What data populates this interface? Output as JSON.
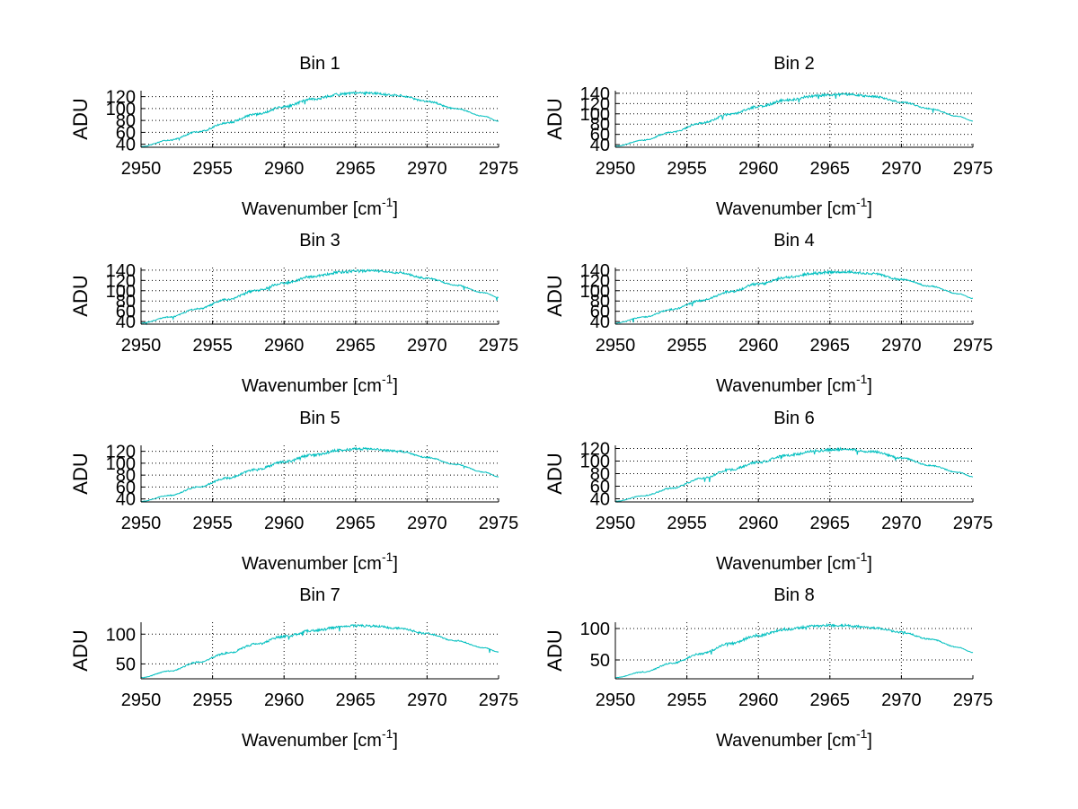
{
  "colors": {
    "background": "#ffffff",
    "line": "#00bfbf",
    "axis": "#000000",
    "grid": "#000000"
  },
  "chart_data": [
    {
      "type": "line",
      "title": "Bin 1",
      "xlabel": "Wavenumber [cm",
      "xlabel_sup": "-1",
      "xlabel_end": "]",
      "ylabel": "ADU",
      "xlim": [
        2950,
        2975
      ],
      "ylim": [
        35,
        130
      ],
      "xticks": [
        2950,
        2955,
        2960,
        2965,
        2970,
        2975
      ],
      "yticks": [
        40,
        60,
        80,
        100,
        120
      ],
      "grid": true,
      "series": [
        {
          "x": [
            2950,
            2952,
            2954,
            2956,
            2958,
            2960,
            2962,
            2964,
            2965,
            2966,
            2968,
            2970,
            2972,
            2974,
            2975
          ],
          "y": [
            36,
            47,
            61,
            76,
            90,
            103,
            116,
            124,
            126,
            126,
            122,
            112,
            100,
            87,
            79
          ],
          "noise": 2.5
        }
      ]
    },
    {
      "type": "line",
      "title": "Bin 2",
      "xlabel": "Wavenumber [cm",
      "xlabel_sup": "-1",
      "xlabel_end": "]",
      "ylabel": "ADU",
      "xlim": [
        2950,
        2975
      ],
      "ylim": [
        35,
        145
      ],
      "xticks": [
        2950,
        2955,
        2960,
        2965,
        2970,
        2975
      ],
      "yticks": [
        40,
        60,
        80,
        100,
        120,
        140
      ],
      "grid": true,
      "series": [
        {
          "x": [
            2950,
            2952,
            2954,
            2956,
            2958,
            2960,
            2962,
            2964,
            2965,
            2966,
            2968,
            2970,
            2972,
            2974,
            2975
          ],
          "y": [
            37,
            49,
            65,
            82,
            99,
            114,
            127,
            135,
            137,
            138,
            134,
            123,
            110,
            95,
            86
          ],
          "noise": 3.0
        }
      ]
    },
    {
      "type": "line",
      "title": "Bin 3",
      "xlabel": "Wavenumber [cm",
      "xlabel_sup": "-1",
      "xlabel_end": "]",
      "ylabel": "ADU",
      "xlim": [
        2950,
        2975
      ],
      "ylim": [
        35,
        145
      ],
      "xticks": [
        2950,
        2955,
        2960,
        2965,
        2970,
        2975
      ],
      "yticks": [
        40,
        60,
        80,
        100,
        120,
        140
      ],
      "grid": true,
      "series": [
        {
          "x": [
            2950,
            2952,
            2954,
            2956,
            2958,
            2960,
            2962,
            2964,
            2965,
            2966,
            2968,
            2970,
            2972,
            2974,
            2975
          ],
          "y": [
            37,
            49,
            65,
            83,
            100,
            115,
            128,
            136,
            138,
            139,
            135,
            124,
            111,
            96,
            87
          ],
          "noise": 3.0
        }
      ]
    },
    {
      "type": "line",
      "title": "Bin 4",
      "xlabel": "Wavenumber [cm",
      "xlabel_sup": "-1",
      "xlabel_end": "]",
      "ylabel": "ADU",
      "xlim": [
        2950,
        2975
      ],
      "ylim": [
        35,
        145
      ],
      "xticks": [
        2950,
        2955,
        2960,
        2965,
        2970,
        2975
      ],
      "yticks": [
        40,
        60,
        80,
        100,
        120,
        140
      ],
      "grid": true,
      "series": [
        {
          "x": [
            2950,
            2952,
            2954,
            2956,
            2958,
            2960,
            2962,
            2964,
            2965,
            2966,
            2968,
            2970,
            2972,
            2974,
            2975
          ],
          "y": [
            37,
            49,
            64,
            81,
            98,
            113,
            126,
            134,
            136,
            137,
            133,
            122,
            109,
            94,
            85
          ],
          "noise": 3.0
        }
      ]
    },
    {
      "type": "line",
      "title": "Bin 5",
      "xlabel": "Wavenumber [cm",
      "xlabel_sup": "-1",
      "xlabel_end": "]",
      "ylabel": "ADU",
      "xlim": [
        2950,
        2975
      ],
      "ylim": [
        35,
        130
      ],
      "xticks": [
        2950,
        2955,
        2960,
        2965,
        2970,
        2975
      ],
      "yticks": [
        40,
        60,
        80,
        100,
        120
      ],
      "grid": true,
      "series": [
        {
          "x": [
            2950,
            2952,
            2954,
            2956,
            2958,
            2960,
            2962,
            2964,
            2965,
            2966,
            2968,
            2970,
            2972,
            2974,
            2975
          ],
          "y": [
            36,
            46,
            60,
            75,
            89,
            102,
            114,
            122,
            124,
            124,
            120,
            110,
            98,
            85,
            77
          ],
          "noise": 2.5
        }
      ]
    },
    {
      "type": "line",
      "title": "Bin 6",
      "xlabel": "Wavenumber [cm",
      "xlabel_sup": "-1",
      "xlabel_end": "]",
      "ylabel": "ADU",
      "xlim": [
        2950,
        2975
      ],
      "ylim": [
        35,
        125
      ],
      "xticks": [
        2950,
        2955,
        2960,
        2965,
        2970,
        2975
      ],
      "yticks": [
        40,
        60,
        80,
        100,
        120
      ],
      "grid": true,
      "series": [
        {
          "x": [
            2950,
            2952,
            2954,
            2956,
            2958,
            2960,
            2962,
            2964,
            2965,
            2966,
            2968,
            2970,
            2972,
            2974,
            2975
          ],
          "y": [
            36,
            45,
            57,
            72,
            86,
            98,
            109,
            116,
            118,
            119,
            115,
            105,
            93,
            82,
            75
          ],
          "noise": 2.5
        }
      ]
    },
    {
      "type": "line",
      "title": "Bin 7",
      "xlabel": "Wavenumber [cm",
      "xlabel_sup": "-1",
      "xlabel_end": "]",
      "ylabel": "ADU",
      "xlim": [
        2950,
        2975
      ],
      "ylim": [
        25,
        120
      ],
      "xticks": [
        2950,
        2955,
        2960,
        2965,
        2970,
        2975
      ],
      "yticks": [
        50,
        100
      ],
      "grid": true,
      "series": [
        {
          "x": [
            2950,
            2952,
            2954,
            2956,
            2958,
            2960,
            2962,
            2964,
            2965,
            2966,
            2968,
            2970,
            2972,
            2974,
            2975
          ],
          "y": [
            27,
            38,
            53,
            68,
            83,
            96,
            106,
            112,
            114,
            114,
            110,
            101,
            89,
            77,
            70
          ],
          "noise": 2.5
        }
      ]
    },
    {
      "type": "line",
      "title": "Bin 8",
      "xlabel": "Wavenumber [cm",
      "xlabel_sup": "-1",
      "xlabel_end": "]",
      "ylabel": "ADU",
      "xlim": [
        2950,
        2975
      ],
      "ylim": [
        20,
        110
      ],
      "xticks": [
        2950,
        2955,
        2960,
        2965,
        2970,
        2975
      ],
      "yticks": [
        50,
        100
      ],
      "grid": true,
      "series": [
        {
          "x": [
            2950,
            2952,
            2954,
            2956,
            2958,
            2960,
            2962,
            2964,
            2965,
            2966,
            2968,
            2970,
            2972,
            2974,
            2975
          ],
          "y": [
            22,
            31,
            45,
            60,
            76,
            89,
            99,
            104,
            105,
            105,
            101,
            94,
            83,
            70,
            62
          ],
          "noise": 2.5
        }
      ]
    }
  ]
}
